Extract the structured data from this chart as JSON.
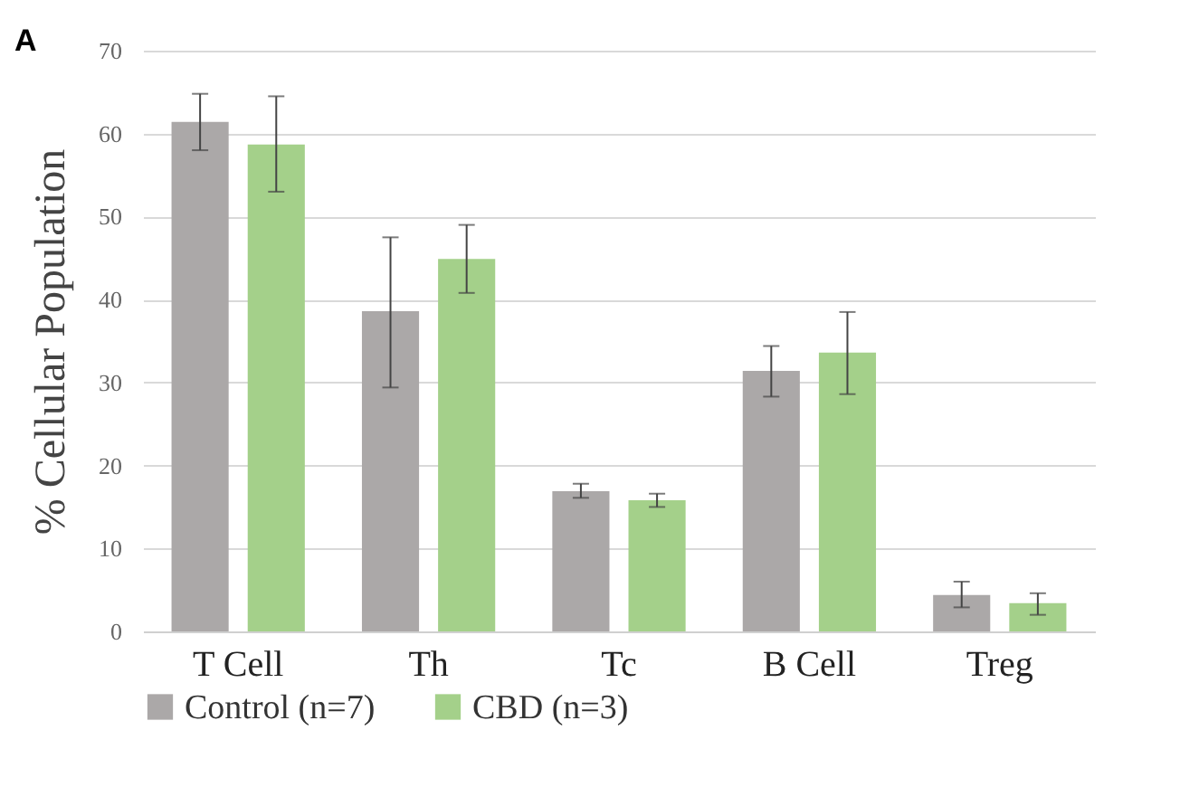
{
  "chart_data": {
    "type": "bar",
    "ylabel": "% Cellular Population",
    "annotations": [
      "A"
    ],
    "categories": [
      "T Cell",
      "Th",
      "Tc",
      "B Cell",
      "Treg"
    ],
    "series": [
      {
        "name": "Control (n=7)",
        "color": "#aba8a8",
        "values": [
          61.4,
          38.6,
          16.9,
          31.4,
          4.4
        ],
        "errors": [
          [
            58,
            64.8
          ],
          [
            29.4,
            47.5
          ],
          [
            16.1,
            17.8
          ],
          [
            28.3,
            34.4
          ],
          [
            2.9,
            6
          ]
        ]
      },
      {
        "name": "CBD (n=3)",
        "color": "#a4d08a",
        "values": [
          58.7,
          44.9,
          15.8,
          33.6,
          3.4
        ],
        "errors": [
          [
            53,
            64.5
          ],
          [
            40.8,
            49
          ],
          [
            15,
            16.6
          ],
          [
            28.6,
            38.5
          ],
          [
            2,
            4.6
          ]
        ]
      }
    ],
    "ylim": [
      0,
      70
    ],
    "yticks": [
      0,
      10,
      20,
      30,
      40,
      50,
      60,
      70
    ],
    "grid": "y",
    "legend": "bottom"
  }
}
